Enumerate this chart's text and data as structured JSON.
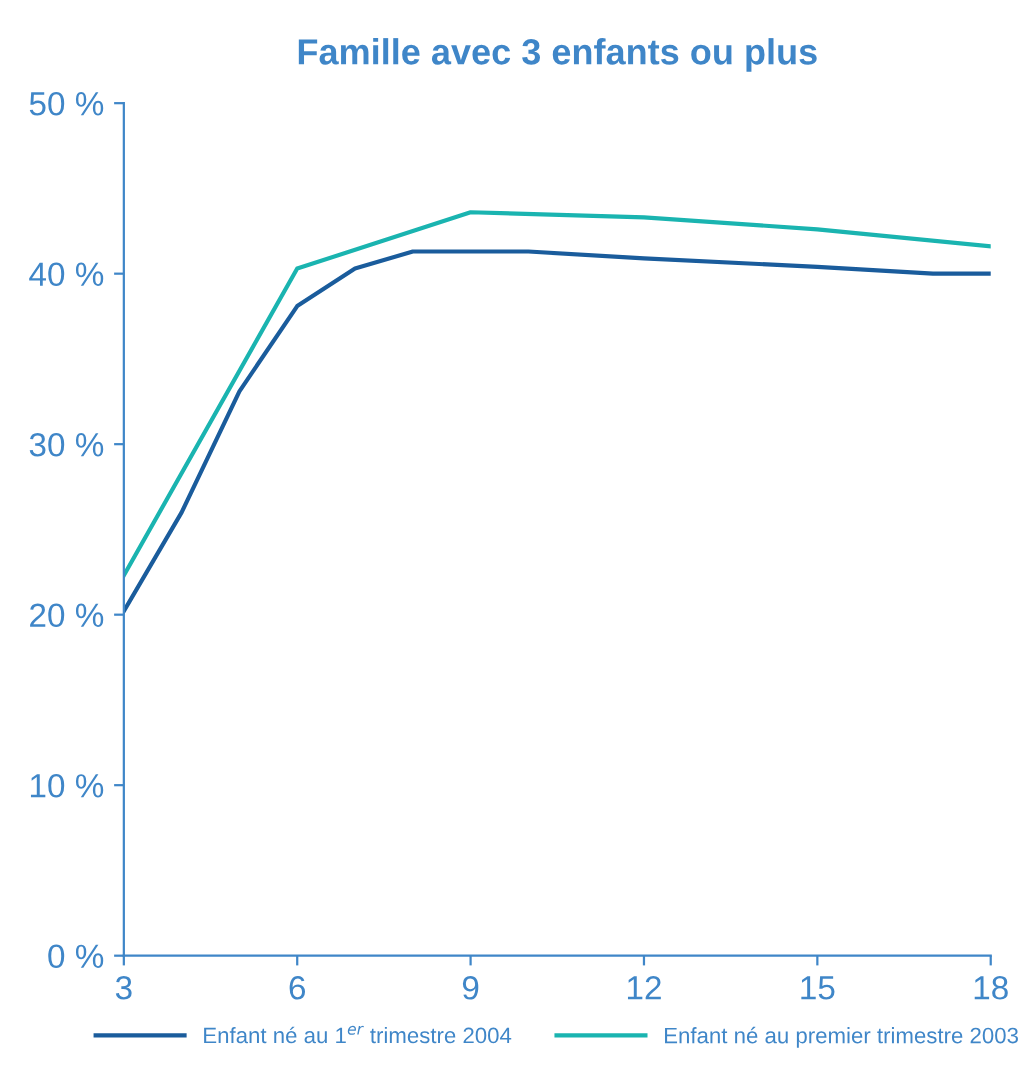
{
  "chart_data": {
    "type": "line",
    "title": "Famille avec 3 enfants ou plus",
    "series": [
      {
        "name": "Enfant né au 1$^{er}$ trimestre 2004",
        "color": "#1a5c9c",
        "x": [
          3,
          4,
          5,
          6,
          7,
          8,
          9,
          10,
          12,
          15,
          17,
          18
        ],
        "values": [
          20.2,
          26,
          33.1,
          38.1,
          40.3,
          41.3,
          41.3,
          41.3,
          40.9,
          40.4,
          40,
          40
        ]
      },
      {
        "name": "Enfant né au premier trimestre 2003",
        "color": "#1ab4b0",
        "x": [
          3,
          6,
          9,
          12,
          15,
          18
        ],
        "values": [
          22.3,
          40.3,
          43.6,
          43.3,
          42.6,
          41.6
        ]
      }
    ],
    "xlim": [
      3,
      18
    ],
    "xticks": [
      3,
      6,
      9,
      12,
      15,
      18
    ],
    "ylim": [
      0,
      50
    ],
    "yticks": [
      {
        "value": 0,
        "label": "0 %"
      },
      {
        "value": 10,
        "label": "10 %"
      },
      {
        "value": 20,
        "label": "20 %"
      },
      {
        "value": 30,
        "label": "30 %"
      },
      {
        "value": 40,
        "label": "40 %"
      },
      {
        "value": 50,
        "label": "50 %"
      }
    ],
    "grid": false,
    "legend": "bottom",
    "marker": "none",
    "line_style": "solid"
  }
}
